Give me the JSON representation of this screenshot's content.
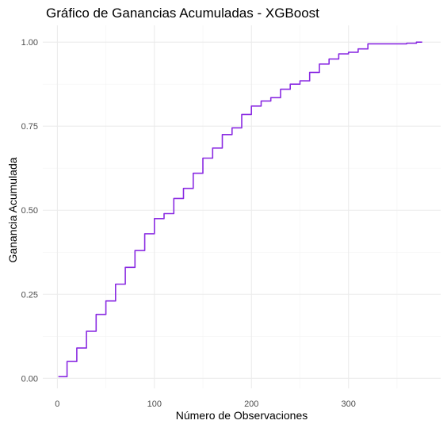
{
  "chart_data": {
    "type": "line",
    "title": "Gráfico de Ganancias Acumuladas - XGBoost",
    "xlabel": "Número de Observaciones",
    "ylabel": "Ganancia Acumulada",
    "xlim": [
      -15,
      395
    ],
    "ylim": [
      -0.03,
      1.05
    ],
    "x_ticks": [
      0,
      100,
      200,
      300
    ],
    "x_tick_labels": [
      "0",
      "100",
      "200",
      "300"
    ],
    "y_ticks": [
      0,
      0.25,
      0.5,
      0.75,
      1.0
    ],
    "y_tick_labels": [
      "0.00",
      "0.25",
      "0.50",
      "0.75",
      "1.00"
    ],
    "grid": true,
    "legend": "none",
    "series": [
      {
        "color": "#8a2be2",
        "step": true,
        "x": [
          1,
          10,
          20,
          30,
          40,
          50,
          60,
          70,
          80,
          90,
          100,
          110,
          120,
          130,
          140,
          150,
          160,
          170,
          180,
          190,
          200,
          210,
          220,
          230,
          240,
          250,
          260,
          270,
          280,
          290,
          300,
          310,
          320,
          330,
          340,
          350,
          360,
          370,
          376
        ],
        "y": [
          0.005,
          0.05,
          0.09,
          0.14,
          0.19,
          0.23,
          0.28,
          0.33,
          0.38,
          0.43,
          0.475,
          0.49,
          0.535,
          0.565,
          0.61,
          0.655,
          0.685,
          0.725,
          0.745,
          0.785,
          0.81,
          0.825,
          0.835,
          0.86,
          0.875,
          0.885,
          0.91,
          0.935,
          0.95,
          0.965,
          0.97,
          0.98,
          0.995,
          0.995,
          0.995,
          0.995,
          0.997,
          1.0,
          1.0
        ]
      }
    ]
  }
}
